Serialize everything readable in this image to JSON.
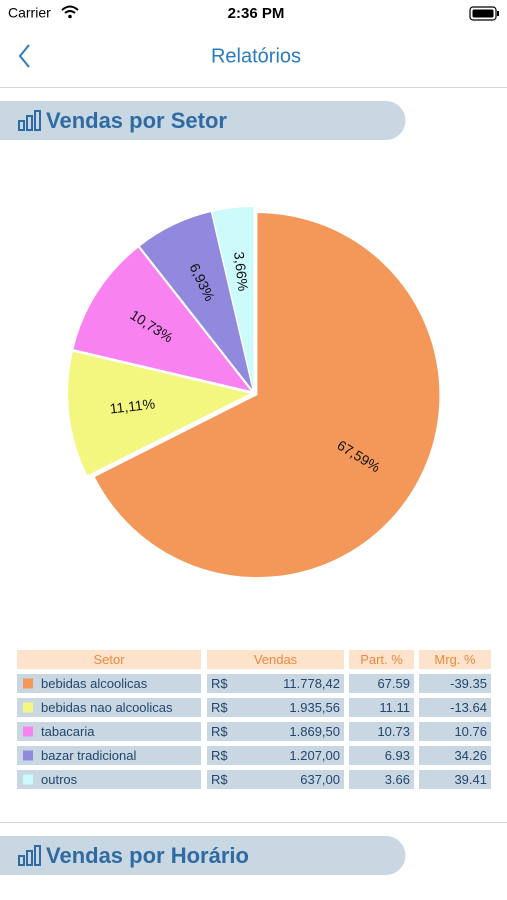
{
  "status_bar": {
    "carrier": "Carrier",
    "time": "2:36 PM"
  },
  "nav": {
    "title": "Relatórios"
  },
  "sections": [
    {
      "title": "Vendas por Setor"
    },
    {
      "title": "Vendas por Horário"
    }
  ],
  "chart_data": {
    "type": "pie",
    "values": [
      67.59,
      11.11,
      10.73,
      6.93,
      3.66
    ],
    "value_labels": [
      "67,59%",
      "11,11%",
      "10,73%",
      "6,93%",
      "3,66%"
    ],
    "colors": [
      "#f4985a",
      "#f3f77f",
      "#f883f0",
      "#9189dd",
      "#cdfafa"
    ]
  },
  "table": {
    "header": [
      "Setor",
      "Vendas",
      "Part. %",
      "Mrg. %"
    ],
    "rows": [
      [
        "bebidas alcoolicas",
        "R$",
        "11.778,42",
        "67.59",
        "-39.35"
      ],
      [
        "bebidas nao alcoolicas",
        "R$",
        "1.935,56",
        "11.11",
        "-13.64"
      ],
      [
        "tabacaria",
        "R$",
        "1.869,50",
        "10.73",
        "10.76"
      ],
      [
        "bazar tradicional",
        "R$",
        "1.207,00",
        "6.93",
        "34.26"
      ],
      [
        "outros",
        "R$",
        "637,00",
        "3.66",
        "39.41"
      ]
    ]
  }
}
